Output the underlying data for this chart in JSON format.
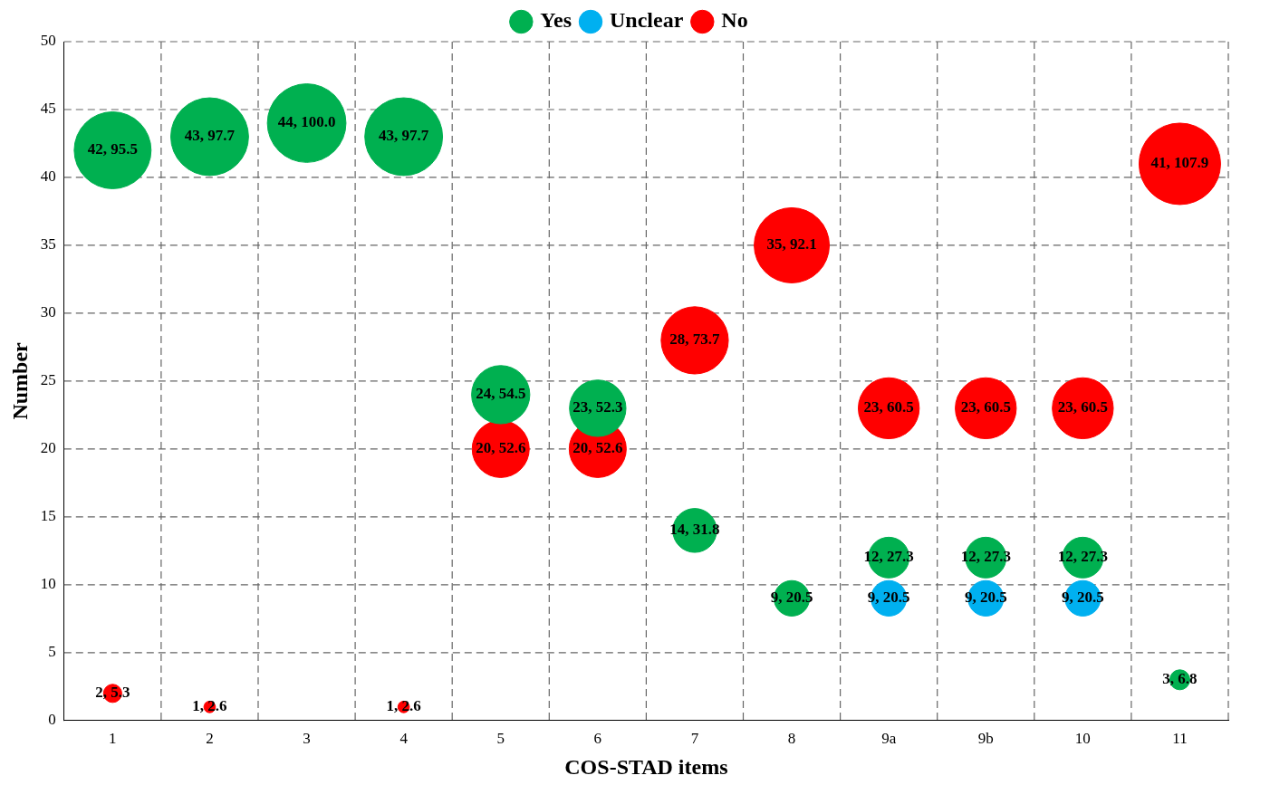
{
  "chart_data": {
    "type": "bubble",
    "xlabel": "COS-STAD items",
    "ylabel": "Number",
    "categories": [
      "1",
      "2",
      "3",
      "4",
      "5",
      "6",
      "7",
      "8",
      "9a",
      "9b",
      "10",
      "11"
    ],
    "series": [
      {
        "name": "Yes",
        "color": "#00b050",
        "values": [
          42,
          43,
          44,
          43,
          24,
          23,
          14,
          9,
          12,
          12,
          12,
          3
        ],
        "sizes": [
          0.89,
          0.91,
          0.93,
          0.91,
          0.51,
          0.48,
          0.29,
          0.19,
          0.25,
          0.25,
          0.25,
          0.06
        ],
        "value_labels": [
          "42, 95.5",
          "43, 97.7",
          "44, 100.0",
          "43, 97.7",
          "24, 54.5",
          "23, 52.3",
          "14, 31.8",
          "9, 20.5",
          "12, 27.3",
          "12, 27.3",
          "12, 27.3",
          "3, 6.8"
        ]
      },
      {
        "name": "Unclear",
        "color": "#00b0f0",
        "values": [
          null,
          null,
          null,
          null,
          null,
          null,
          null,
          null,
          9,
          9,
          9,
          null
        ],
        "sizes": [
          null,
          null,
          null,
          null,
          null,
          null,
          null,
          null,
          0.19,
          0.19,
          0.19,
          null
        ],
        "value_labels": [
          null,
          null,
          null,
          null,
          null,
          null,
          null,
          null,
          "9, 20.5",
          "9, 20.5",
          "9, 20.5",
          null
        ]
      },
      {
        "name": "No",
        "color": "#ff0000",
        "values": [
          2,
          1,
          null,
          1,
          20,
          20,
          28,
          35,
          23,
          23,
          23,
          41
        ],
        "sizes": [
          0.05,
          0.02,
          null,
          0.02,
          0.49,
          0.49,
          0.68,
          0.85,
          0.56,
          0.56,
          0.56,
          1
        ],
        "value_labels": [
          "2, 5.3",
          "1, 2.6",
          null,
          "1, 2.6",
          "20, 52.6",
          "20, 52.6",
          "28, 73.7",
          "35, 92.1",
          "23, 60.5",
          "23, 60.5",
          "23, 60.5",
          "41, 107.9"
        ]
      }
    ],
    "ylim": [
      0,
      50
    ],
    "yticks": [
      0,
      5,
      10,
      15,
      20,
      25,
      30,
      35,
      40,
      45,
      50
    ],
    "grid": true,
    "legend": "top",
    "marker": "circle"
  }
}
